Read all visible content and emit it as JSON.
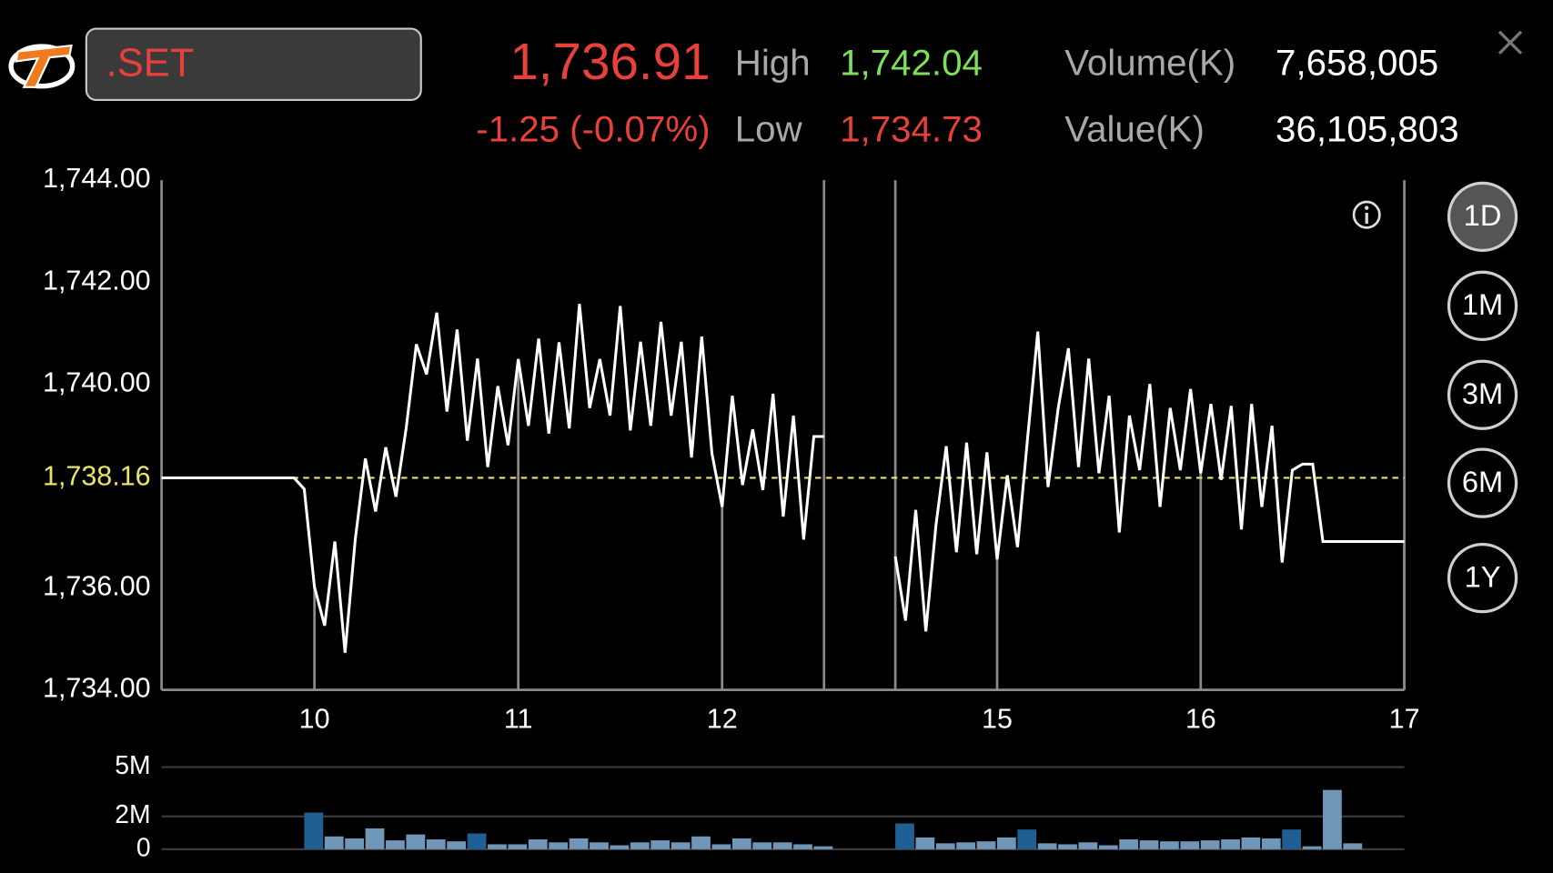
{
  "header": {
    "symbol": ".SET",
    "last": "1,736.91",
    "change": "-1.25 (-0.07%)",
    "high_label": "High",
    "high": "1,742.04",
    "low_label": "Low",
    "low": "1,734.73",
    "volume_label": "Volume(K)",
    "volume": "7,658,005",
    "value_label": "Value(K)",
    "value": "36,105,803"
  },
  "periods": [
    "1D",
    "1M",
    "3M",
    "6M",
    "1Y"
  ],
  "selected_period_index": 0,
  "chart_data": {
    "type": "line",
    "x_segments": [
      [
        9.25,
        12.5
      ],
      [
        14.5,
        17
      ]
    ],
    "ylim": [
      1734,
      1744
    ],
    "yticks": [
      {
        "value": 1734,
        "label": "1,734.00"
      },
      {
        "value": 1736,
        "label": "1,736.00"
      },
      {
        "value": 1740,
        "label": "1,740.00"
      },
      {
        "value": 1742,
        "label": "1,742.00"
      },
      {
        "value": 1744,
        "label": "1,744.00"
      }
    ],
    "xticks": [
      10,
      11,
      12,
      15,
      16,
      17
    ],
    "reference": {
      "value": 1738.16,
      "label": "1,738.16",
      "color": "#e9e46c"
    },
    "series": [
      {
        "color": "#ffffff",
        "x": [
          9.25,
          9.9,
          9.95,
          10,
          10.05,
          10.1,
          10.15,
          10.2,
          10.25,
          10.3,
          10.35,
          10.4,
          10.45,
          10.5,
          10.55,
          10.6,
          10.65,
          10.7,
          10.75,
          10.8,
          10.85,
          10.9,
          10.95,
          11,
          11.05,
          11.1,
          11.15,
          11.2,
          11.25,
          11.3,
          11.35,
          11.4,
          11.45,
          11.5,
          11.55,
          11.6,
          11.65,
          11.7,
          11.75,
          11.8,
          11.85,
          11.9,
          11.95,
          12,
          12.05,
          12.1,
          12.15,
          12.2,
          12.25,
          12.3,
          12.35,
          12.4,
          12.45,
          12.5
        ],
        "values": [
          1738.16,
          1738.16,
          1737.94,
          1736.02,
          1735.26,
          1736.91,
          1734.73,
          1736.95,
          1738.54,
          1737.5,
          1738.76,
          1737.79,
          1739.13,
          1740.78,
          1740.19,
          1741.4,
          1739.46,
          1741.07,
          1738.89,
          1740.5,
          1738.37,
          1739.96,
          1738.8,
          1740.49,
          1739.18,
          1740.89,
          1739.03,
          1740.82,
          1739.13,
          1741.57,
          1739.53,
          1740.49,
          1739.38,
          1741.53,
          1739.09,
          1740.83,
          1739.18,
          1741.22,
          1739.38,
          1740.83,
          1738.56,
          1740.93,
          1738.64,
          1737.59,
          1739.77,
          1738.02,
          1739.11,
          1737.92,
          1739.81,
          1737.4,
          1739.38,
          1736.95,
          1738.97,
          1738.97
        ]
      },
      {
        "color": "#ffffff",
        "x": [
          14.5,
          14.55,
          14.6,
          14.65,
          14.7,
          14.75,
          14.8,
          14.85,
          14.9,
          14.95,
          15,
          15.05,
          15.1,
          15.15,
          15.2,
          15.25,
          15.3,
          15.35,
          15.4,
          15.45,
          15.5,
          15.55,
          15.6,
          15.65,
          15.7,
          15.75,
          15.8,
          15.85,
          15.9,
          15.95,
          16,
          16.05,
          16.1,
          16.15,
          16.2,
          16.25,
          16.3,
          16.35,
          16.4,
          16.45,
          16.5,
          16.55,
          16.6,
          17
        ],
        "values": [
          1736.62,
          1735.36,
          1737.53,
          1735.15,
          1737.24,
          1738.78,
          1736.7,
          1738.85,
          1736.66,
          1738.66,
          1736.56,
          1738.21,
          1736.8,
          1738.95,
          1741.03,
          1737.98,
          1739.53,
          1740.7,
          1738.37,
          1740.5,
          1738.25,
          1739.77,
          1737.09,
          1739.38,
          1738.31,
          1740,
          1737.59,
          1739.53,
          1738.31,
          1739.9,
          1738.25,
          1739.61,
          1738.12,
          1739.57,
          1737.15,
          1739.61,
          1737.59,
          1739.18,
          1736.5,
          1738.31,
          1738.43,
          1738.43,
          1736.91,
          1736.91
        ]
      }
    ],
    "volume": {
      "type": "bar",
      "ylim": [
        0,
        5000000
      ],
      "yticks": [
        0,
        {
          "value": 2000000,
          "label": "2M"
        },
        {
          "value": 5000000,
          "label": "5M"
        }
      ],
      "x": [
        9.95,
        10.05,
        10.15,
        10.25,
        10.35,
        10.45,
        10.55,
        10.65,
        10.75,
        10.85,
        10.95,
        11.05,
        11.15,
        11.25,
        11.35,
        11.45,
        11.55,
        11.65,
        11.75,
        11.85,
        11.95,
        12.05,
        12.15,
        12.25,
        12.35,
        12.45,
        14.5,
        14.6,
        14.7,
        14.8,
        14.9,
        15,
        15.1,
        15.2,
        15.3,
        15.4,
        15.5,
        15.6,
        15.7,
        15.8,
        15.9,
        16,
        16.1,
        16.2,
        16.3,
        16.4,
        16.5,
        16.6,
        16.7
      ],
      "values": [
        2230000,
        780000,
        660000,
        1270000,
        540000,
        900000,
        600000,
        480000,
        960000,
        300000,
        300000,
        600000,
        420000,
        660000,
        420000,
        240000,
        420000,
        540000,
        420000,
        780000,
        300000,
        660000,
        420000,
        420000,
        300000,
        180000,
        1570000,
        720000,
        360000,
        420000,
        480000,
        720000,
        1200000,
        360000,
        300000,
        420000,
        240000,
        600000,
        540000,
        480000,
        480000,
        540000,
        600000,
        720000,
        660000,
        1200000,
        180000,
        3610000,
        360000
      ],
      "colors": [
        "#1f5f94",
        "#7096b8",
        "#7096b8",
        "#7096b8",
        "#7096b8",
        "#7096b8",
        "#7096b8",
        "#7096b8",
        "#1f5f94",
        "#7096b8",
        "#7096b8",
        "#7096b8",
        "#7096b8",
        "#7096b8",
        "#7096b8",
        "#7096b8",
        "#7096b8",
        "#7096b8",
        "#7096b8",
        "#7096b8",
        "#7096b8",
        "#7096b8",
        "#7096b8",
        "#7096b8",
        "#7096b8",
        "#7096b8",
        "#1f5f94",
        "#7096b8",
        "#7096b8",
        "#7096b8",
        "#7096b8",
        "#7096b8",
        "#1f5f94",
        "#7096b8",
        "#7096b8",
        "#7096b8",
        "#7096b8",
        "#7096b8",
        "#7096b8",
        "#7096b8",
        "#7096b8",
        "#7096b8",
        "#7096b8",
        "#7096b8",
        "#7096b8",
        "#1f5f94",
        "#7096b8",
        "#7096b8",
        "#7096b8"
      ]
    }
  }
}
